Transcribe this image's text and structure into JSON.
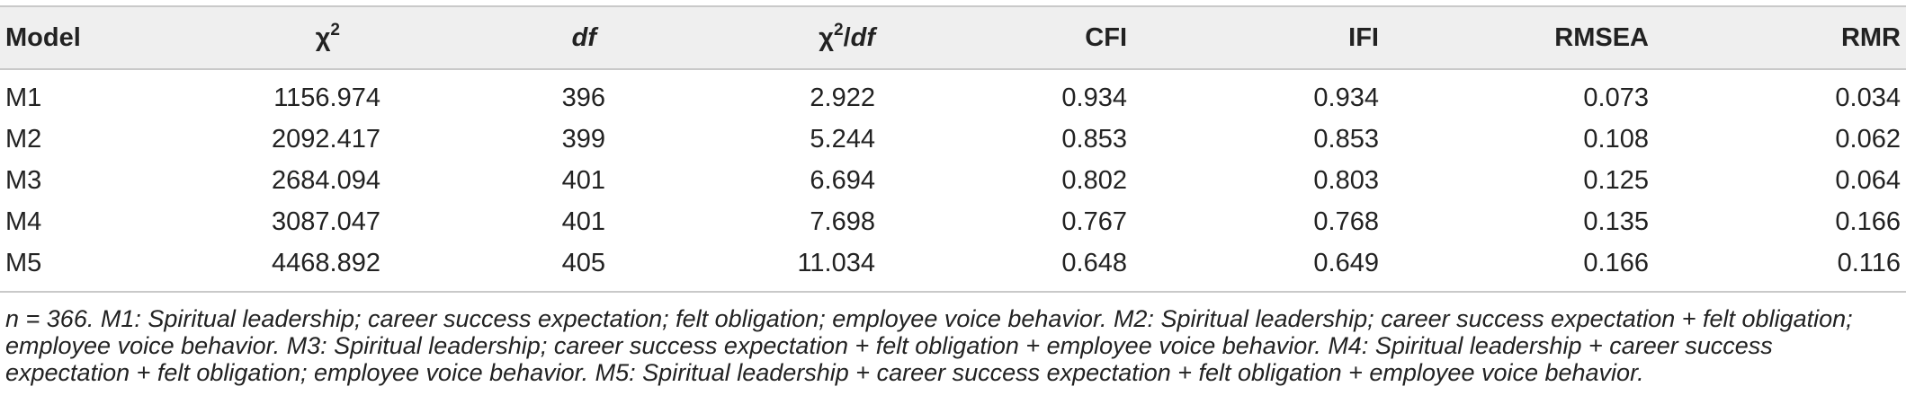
{
  "table": {
    "headers": {
      "model": "Model",
      "chi_symbol": "χ",
      "chi_sup": "2",
      "df": "df",
      "ratio_symbol": "χ",
      "ratio_sup": "2",
      "ratio_slash": "/",
      "ratio_df": "df",
      "cfi": "CFI",
      "ifi": "IFI",
      "rmsea": "RMSEA",
      "rmr": "RMR"
    },
    "rows": [
      {
        "model": "M1",
        "chi2": "1156.974",
        "df": "396",
        "ratio": "2.922",
        "cfi": "0.934",
        "ifi": "0.934",
        "rmsea": "0.073",
        "rmr": "0.034"
      },
      {
        "model": "M2",
        "chi2": "2092.417",
        "df": "399",
        "ratio": "5.244",
        "cfi": "0.853",
        "ifi": "0.853",
        "rmsea": "0.108",
        "rmr": "0.062"
      },
      {
        "model": "M3",
        "chi2": "2684.094",
        "df": "401",
        "ratio": "6.694",
        "cfi": "0.802",
        "ifi": "0.803",
        "rmsea": "0.125",
        "rmr": "0.064"
      },
      {
        "model": "M4",
        "chi2": "3087.047",
        "df": "401",
        "ratio": "7.698",
        "cfi": "0.767",
        "ifi": "0.768",
        "rmsea": "0.135",
        "rmr": "0.166"
      },
      {
        "model": "M5",
        "chi2": "4468.892",
        "df": "405",
        "ratio": "11.034",
        "cfi": "0.648",
        "ifi": "0.649",
        "rmsea": "0.166",
        "rmr": "0.116"
      }
    ]
  },
  "note": "n = 366. M1: Spiritual leadership; career success expectation; felt obligation; employee voice behavior. M2: Spiritual leadership; career success expectation + felt obligation; employee voice behavior. M3: Spiritual leadership; career success expectation + felt obligation + employee voice behavior. M4: Spiritual leadership + career success expectation + felt obligation; employee voice behavior. M5: Spiritual leadership + career success expectation + felt obligation + employee voice behavior."
}
